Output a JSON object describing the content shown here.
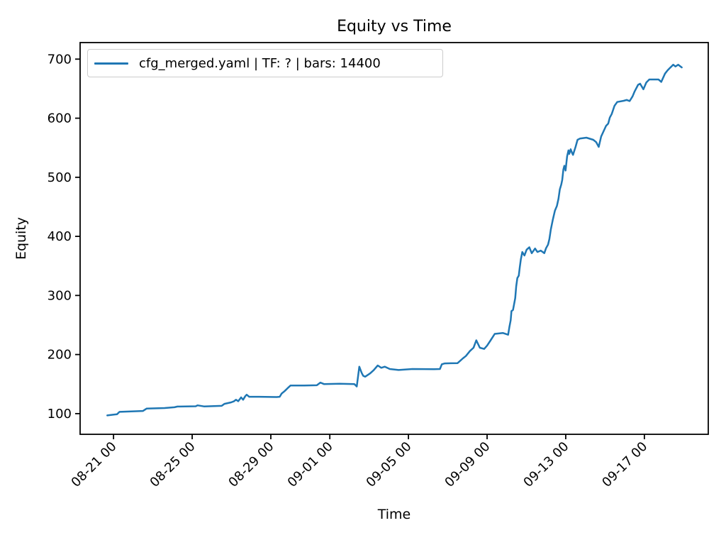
{
  "chart_data": {
    "type": "line",
    "title": "Equity vs Time",
    "xlabel": "Time",
    "ylabel": "Equity",
    "grid": false,
    "legend_position": "upper left",
    "x_axis": {
      "unit": "days since 08-21 00:00",
      "xlim": [
        -1.7,
        30.25
      ],
      "ticks": [
        {
          "d": 0,
          "label": "08-21 00"
        },
        {
          "d": 4,
          "label": "08-25 00"
        },
        {
          "d": 8,
          "label": "08-29 00"
        },
        {
          "d": 11,
          "label": "09-01 00"
        },
        {
          "d": 15,
          "label": "09-05 00"
        },
        {
          "d": 19,
          "label": "09-09 00"
        },
        {
          "d": 23,
          "label": "09-13 00"
        },
        {
          "d": 27,
          "label": "09-17 00"
        }
      ],
      "tick_rotation_deg": 45
    },
    "y_axis": {
      "ylim": [
        65,
        728
      ],
      "ticks": [
        100,
        200,
        300,
        400,
        500,
        600,
        700
      ]
    },
    "series": [
      {
        "name": "cfg_merged.yaml | TF: ? | bars: 14400",
        "color": "#1f77b4",
        "line_width": 2.5,
        "points": [
          [
            -0.32,
            97
          ],
          [
            0.05,
            98.5
          ],
          [
            0.18,
            99
          ],
          [
            0.3,
            103
          ],
          [
            1.5,
            104.5
          ],
          [
            1.68,
            108.5
          ],
          [
            2.6,
            109.5
          ],
          [
            3.1,
            110.8
          ],
          [
            3.25,
            112
          ],
          [
            4.18,
            112.5
          ],
          [
            4.27,
            114
          ],
          [
            4.6,
            112.2
          ],
          [
            5.5,
            113.2
          ],
          [
            5.64,
            116.5
          ],
          [
            5.98,
            119
          ],
          [
            6.13,
            121
          ],
          [
            6.23,
            123.5
          ],
          [
            6.34,
            121
          ],
          [
            6.49,
            127.5
          ],
          [
            6.59,
            123.5
          ],
          [
            6.7,
            129.5
          ],
          [
            6.77,
            132
          ],
          [
            6.9,
            128.5
          ],
          [
            7.4,
            128.5
          ],
          [
            8.3,
            128
          ],
          [
            8.45,
            128.5
          ],
          [
            8.55,
            134
          ],
          [
            8.7,
            138
          ],
          [
            8.85,
            143
          ],
          [
            9.0,
            147.5
          ],
          [
            9.7,
            147.5
          ],
          [
            10.34,
            148
          ],
          [
            10.52,
            152.5
          ],
          [
            10.7,
            150
          ],
          [
            11.5,
            150.5
          ],
          [
            12.25,
            150
          ],
          [
            12.37,
            146
          ],
          [
            12.5,
            179.5
          ],
          [
            12.62,
            169
          ],
          [
            12.7,
            164
          ],
          [
            12.8,
            162.5
          ],
          [
            13.05,
            168
          ],
          [
            13.23,
            173.5
          ],
          [
            13.44,
            181.5
          ],
          [
            13.62,
            177.5
          ],
          [
            13.8,
            179.5
          ],
          [
            14.05,
            175.5
          ],
          [
            14.5,
            173.8
          ],
          [
            15.2,
            175.5
          ],
          [
            16.3,
            175.3
          ],
          [
            16.6,
            175.5
          ],
          [
            16.7,
            183.5
          ],
          [
            16.85,
            185
          ],
          [
            17.5,
            185.5
          ],
          [
            17.77,
            193.5
          ],
          [
            17.92,
            197.5
          ],
          [
            18.13,
            206
          ],
          [
            18.31,
            211.5
          ],
          [
            18.45,
            224
          ],
          [
            18.63,
            211.5
          ],
          [
            18.85,
            209.5
          ],
          [
            19.0,
            215
          ],
          [
            19.17,
            223.5
          ],
          [
            19.39,
            235
          ],
          [
            19.8,
            236.5
          ],
          [
            20.07,
            233.5
          ],
          [
            20.14,
            247.5
          ],
          [
            20.2,
            258
          ],
          [
            20.24,
            273.5
          ],
          [
            20.32,
            275.5
          ],
          [
            20.43,
            295.5
          ],
          [
            20.48,
            315.5
          ],
          [
            20.54,
            329.5
          ],
          [
            20.61,
            333.5
          ],
          [
            20.66,
            347.5
          ],
          [
            20.72,
            361.5
          ],
          [
            20.79,
            373.5
          ],
          [
            20.9,
            367.5
          ],
          [
            21.01,
            377.5
          ],
          [
            21.15,
            381.5
          ],
          [
            21.27,
            371.5
          ],
          [
            21.44,
            379.5
          ],
          [
            21.56,
            373.5
          ],
          [
            21.73,
            376
          ],
          [
            21.91,
            371.5
          ],
          [
            22.0,
            380
          ],
          [
            22.1,
            386
          ],
          [
            22.17,
            395.5
          ],
          [
            22.24,
            411.5
          ],
          [
            22.34,
            427.5
          ],
          [
            22.45,
            443.5
          ],
          [
            22.55,
            451.5
          ],
          [
            22.63,
            463.5
          ],
          [
            22.7,
            479.5
          ],
          [
            22.77,
            487.5
          ],
          [
            22.82,
            495.5
          ],
          [
            22.88,
            513
          ],
          [
            22.93,
            519.5
          ],
          [
            22.99,
            511.5
          ],
          [
            23.07,
            535.5
          ],
          [
            23.14,
            545.5
          ],
          [
            23.18,
            539.5
          ],
          [
            23.25,
            547.5
          ],
          [
            23.32,
            541.5
          ],
          [
            23.37,
            538
          ],
          [
            23.5,
            551.5
          ],
          [
            23.6,
            563.5
          ],
          [
            23.72,
            565.5
          ],
          [
            24.05,
            567
          ],
          [
            24.4,
            563.5
          ],
          [
            24.55,
            559.5
          ],
          [
            24.68,
            551.5
          ],
          [
            24.8,
            569
          ],
          [
            24.94,
            579
          ],
          [
            25.05,
            587
          ],
          [
            25.16,
            591
          ],
          [
            25.24,
            601
          ],
          [
            25.34,
            607
          ],
          [
            25.48,
            621
          ],
          [
            25.62,
            627.5
          ],
          [
            25.95,
            629.5
          ],
          [
            26.1,
            631
          ],
          [
            26.25,
            629
          ],
          [
            26.4,
            637
          ],
          [
            26.5,
            645
          ],
          [
            26.68,
            656.5
          ],
          [
            26.78,
            658.5
          ],
          [
            26.95,
            649
          ],
          [
            27.1,
            660.5
          ],
          [
            27.25,
            665.5
          ],
          [
            27.72,
            665.5
          ],
          [
            27.86,
            661.5
          ],
          [
            28.05,
            675.5
          ],
          [
            28.18,
            681
          ],
          [
            28.3,
            685
          ],
          [
            28.47,
            690.5
          ],
          [
            28.58,
            687.5
          ],
          [
            28.72,
            690.5
          ],
          [
            28.9,
            686
          ]
        ]
      }
    ],
    "axis_color": "#000000",
    "tick_font_px": 18
  }
}
